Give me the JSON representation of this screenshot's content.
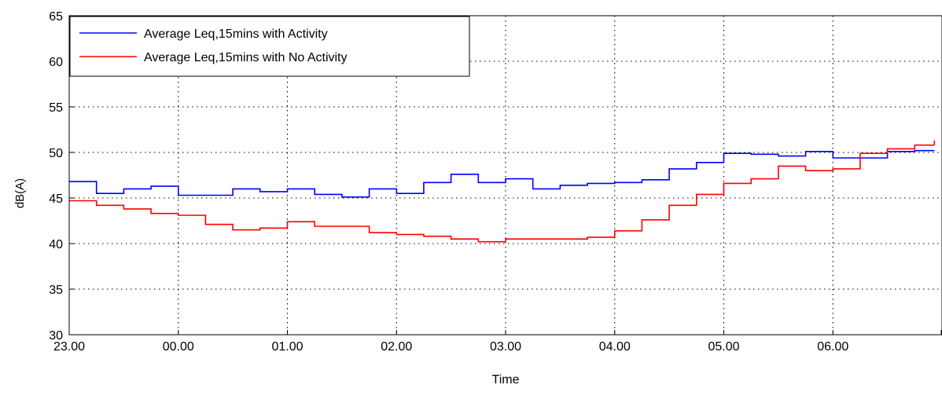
{
  "chart_data": {
    "type": "line",
    "step": true,
    "xlabel": "Time",
    "ylabel": "dB(A)",
    "ylim": [
      30,
      65
    ],
    "yticks": [
      30,
      35,
      40,
      45,
      50,
      55,
      60,
      65
    ],
    "xlim": [
      23.0,
      31.0
    ],
    "xticks": [
      {
        "value": 23.0,
        "label": "23.00"
      },
      {
        "value": 24.0,
        "label": "00.00"
      },
      {
        "value": 25.0,
        "label": "01.00"
      },
      {
        "value": 26.0,
        "label": "02.00"
      },
      {
        "value": 27.0,
        "label": "03.00"
      },
      {
        "value": 28.0,
        "label": "04.00"
      },
      {
        "value": 29.0,
        "label": "05.00"
      },
      {
        "value": 30.0,
        "label": "06.00"
      }
    ],
    "grid": true,
    "legend_position": "top-left",
    "series": [
      {
        "name": "Average Leq,15mins with Activity",
        "color": "#0000ff",
        "x": [
          23.0,
          23.25,
          23.5,
          23.75,
          24.0,
          24.25,
          24.5,
          24.75,
          25.0,
          25.25,
          25.5,
          25.75,
          26.0,
          26.25,
          26.5,
          26.75,
          27.0,
          27.25,
          27.5,
          27.75,
          28.0,
          28.25,
          28.5,
          28.75,
          29.0,
          29.25,
          29.5,
          29.75,
          30.0,
          30.25,
          30.5,
          30.75
        ],
        "values": [
          46.8,
          45.5,
          46.0,
          46.3,
          45.3,
          45.3,
          46.0,
          45.7,
          46.0,
          45.4,
          45.1,
          46.0,
          45.5,
          46.7,
          47.6,
          46.7,
          47.1,
          46.0,
          46.4,
          46.6,
          46.7,
          47.0,
          48.2,
          48.9,
          49.9,
          49.8,
          49.6,
          50.1,
          49.4,
          49.4,
          50.1,
          50.2
        ]
      },
      {
        "name": "Average Leq,15mins with No Activity",
        "color": "#ff0000",
        "x": [
          23.0,
          23.25,
          23.5,
          23.75,
          24.0,
          24.25,
          24.5,
          24.75,
          25.0,
          25.25,
          25.5,
          25.75,
          26.0,
          26.25,
          26.5,
          26.75,
          27.0,
          27.25,
          27.5,
          27.75,
          28.0,
          28.25,
          28.5,
          28.75,
          29.0,
          29.25,
          29.5,
          29.75,
          30.0,
          30.25,
          30.5,
          30.75
        ],
        "values": [
          44.7,
          44.2,
          43.8,
          43.3,
          43.1,
          42.1,
          41.5,
          41.7,
          42.4,
          41.9,
          41.9,
          41.2,
          41.0,
          40.8,
          40.5,
          40.2,
          40.5,
          40.5,
          40.5,
          40.7,
          41.4,
          42.6,
          44.2,
          45.4,
          46.6,
          47.1,
          48.5,
          48.0,
          48.2,
          49.9,
          50.4,
          50.8
        ]
      }
    ]
  }
}
